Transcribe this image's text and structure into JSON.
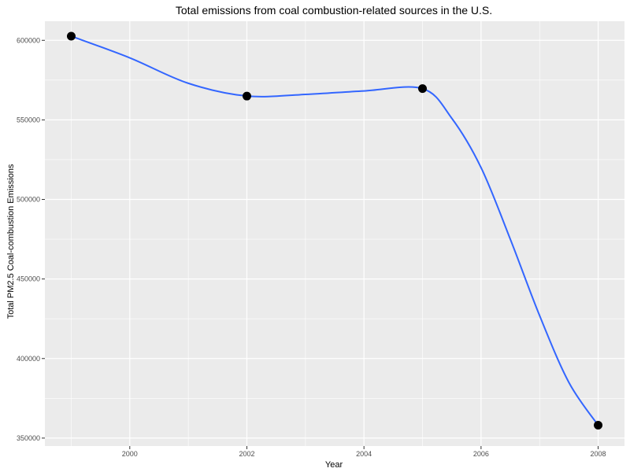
{
  "chart_data": {
    "type": "line",
    "title": "Total emissions from coal combustion-related sources in the U.S.",
    "xlabel": "Year",
    "ylabel": "Total PM2.5 Coal-combustion Emissions",
    "xlim": [
      1998.55,
      2008.45
    ],
    "ylim": [
      345000,
      612000
    ],
    "x_ticks": [
      2000,
      2002,
      2004,
      2006,
      2008
    ],
    "x_tick_labels": [
      "2000",
      "2002",
      "2004",
      "2006",
      "2008"
    ],
    "y_ticks": [
      350000,
      400000,
      450000,
      500000,
      550000,
      600000
    ],
    "y_tick_labels": [
      "350000",
      "400000",
      "450000",
      "500000",
      "550000",
      "600000"
    ],
    "grid": true,
    "series": [
      {
        "points": [
          {
            "x": 1999,
            "y": 602625
          },
          {
            "x": 2002,
            "y": 564940
          },
          {
            "x": 2005,
            "y": 569655
          },
          {
            "x": 2008,
            "y": 358084
          }
        ]
      }
    ],
    "smooth_curve": [
      {
        "x": 1999,
        "y": 602625
      },
      {
        "x": 2000,
        "y": 589000
      },
      {
        "x": 2001,
        "y": 573000
      },
      {
        "x": 2002,
        "y": 565000
      },
      {
        "x": 2003,
        "y": 566000
      },
      {
        "x": 2004,
        "y": 568200
      },
      {
        "x": 2005,
        "y": 569655
      },
      {
        "x": 2005.5,
        "y": 551000
      },
      {
        "x": 2006,
        "y": 520000
      },
      {
        "x": 2006.5,
        "y": 475000
      },
      {
        "x": 2007,
        "y": 427000
      },
      {
        "x": 2007.5,
        "y": 385000
      },
      {
        "x": 2008,
        "y": 358084
      }
    ],
    "colors": {
      "panel_bg": "#EBEBEB",
      "grid_major": "#FFFFFF",
      "curve": "#3366FF",
      "point": "#000000",
      "tick_text": "#4D4D4D"
    }
  }
}
